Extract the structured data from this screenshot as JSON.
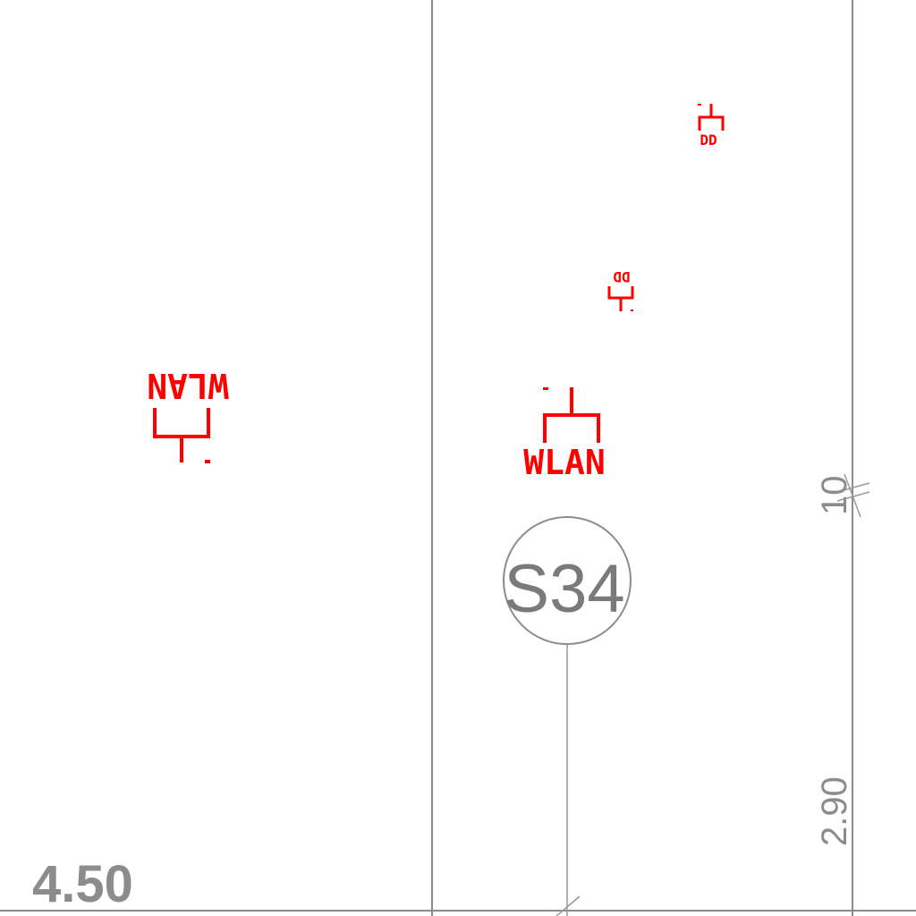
{
  "floorplan": {
    "room_label": "S34",
    "dimensions": {
      "area_or_width_left": "4.50",
      "vertical_dim_upper": "10",
      "vertical_dim_lower": "2.90"
    },
    "outlets": [
      {
        "type": "WLAN",
        "label": "WLAN",
        "orientation": "inverted"
      },
      {
        "type": "WLAN",
        "label": "WLAN",
        "orientation": "upright"
      },
      {
        "type": "data",
        "label": "DD",
        "orientation": "upright"
      },
      {
        "type": "data",
        "label": "DD",
        "orientation": "inverted"
      }
    ],
    "colors": {
      "symbols": "#ff0000",
      "linework": "#8c8c8c"
    }
  }
}
